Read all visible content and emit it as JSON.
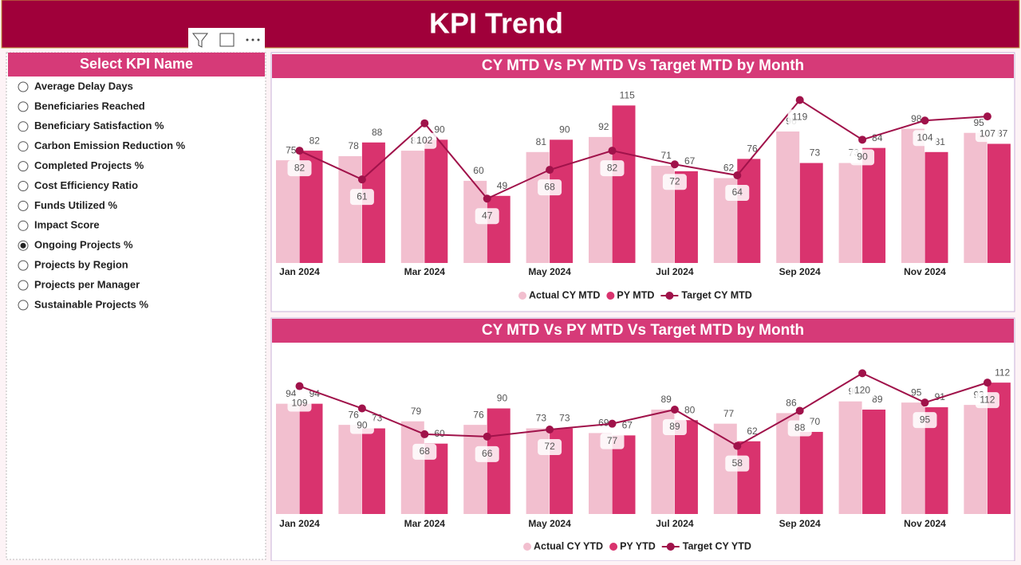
{
  "header": {
    "title": "KPI Trend"
  },
  "slicer": {
    "title": "Select KPI Name",
    "options": [
      "Average Delay Days",
      "Beneficiaries Reached",
      "Beneficiary Satisfaction %",
      "Carbon Emission Reduction %",
      "Completed Projects %",
      "Cost Efficiency Ratio",
      "Funds Utilized %",
      "Impact Score",
      "Ongoing Projects %",
      "Projects by Region",
      "Projects per Manager",
      "Sustainable Projects %"
    ],
    "selected": 8
  },
  "chart_data": [
    {
      "type": "combo",
      "title": "CY MTD Vs PY MTD Vs Target MTD by Month",
      "categories": [
        "Jan 2024",
        null,
        "Mar 2024",
        null,
        "May 2024",
        null,
        "Jul 2024",
        null,
        "Sep 2024",
        null,
        "Nov 2024",
        null
      ],
      "ylim": [
        0,
        135
      ],
      "series": [
        {
          "name": "Actual CY MTD",
          "color": "#f2bfcf",
          "kind": "bar",
          "values": [
            75,
            78,
            82,
            60,
            81,
            92,
            71,
            62,
            96,
            73,
            98,
            95
          ]
        },
        {
          "name": "PY MTD",
          "color": "#d9336e",
          "kind": "bar",
          "values": [
            82,
            88,
            90,
            49,
            90,
            115,
            67,
            76,
            73,
            84,
            81,
            87
          ]
        },
        {
          "name": "Target CY MTD",
          "color": "#a0124a",
          "kind": "line",
          "values": [
            82,
            61,
            102,
            47,
            68,
            82,
            72,
            64,
            119,
            90,
            104,
            107
          ]
        }
      ]
    },
    {
      "type": "combo",
      "title": "CY MTD Vs PY MTD Vs Target MTD by Month",
      "categories": [
        "Jan 2024",
        null,
        "Mar 2024",
        null,
        "May 2024",
        null,
        "Jul 2024",
        null,
        "Sep 2024",
        null,
        "Nov 2024",
        null
      ],
      "ylim": [
        0,
        125
      ],
      "series": [
        {
          "name": "Actual CY YTD",
          "color": "#f2bfcf",
          "kind": "bar",
          "values": [
            94,
            76,
            79,
            76,
            73,
            69,
            89,
            77,
            86,
            96,
            95,
            93
          ]
        },
        {
          "name": "PY YTD",
          "color": "#d9336e",
          "kind": "bar",
          "values": [
            94,
            73,
            60,
            90,
            73,
            67,
            80,
            62,
            70,
            89,
            91,
            112
          ]
        },
        {
          "name": "Target CY YTD",
          "color": "#a0124a",
          "kind": "line",
          "values": [
            109,
            90,
            68,
            66,
            72,
            77,
            89,
            58,
            88,
            120,
            95,
            112
          ]
        }
      ]
    }
  ]
}
